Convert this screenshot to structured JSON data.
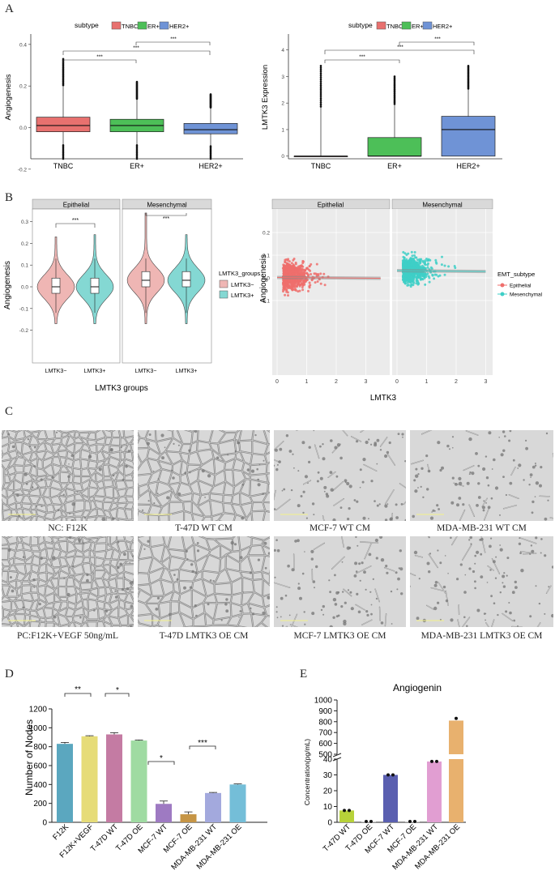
{
  "panels": {
    "A": "A",
    "B": "B",
    "C": "C",
    "D": "D",
    "E": "E"
  },
  "panelA": {
    "legend_title": "subtype",
    "legend_items": [
      "TNBC",
      "ER+",
      "HER2+"
    ],
    "colors": {
      "TNBC": "#e8716f",
      "ER+": "#4dbf58",
      "HER2+": "#6f93d6"
    },
    "sig": "***",
    "left": {
      "chart_data": {
        "type": "box",
        "ylabel": "Angiogenesis",
        "categories": [
          "TNBC",
          "ER+",
          "HER2+"
        ],
        "yticks": [
          "0.4",
          "0.2",
          "0.0",
          "-0.2"
        ],
        "ylim": [
          -0.15,
          0.45
        ],
        "boxes": [
          {
            "q1": -0.02,
            "median": 0.01,
            "q3": 0.05,
            "lo": -0.15,
            "hi": 0.33
          },
          {
            "q1": -0.02,
            "median": 0.01,
            "q3": 0.04,
            "lo": -0.15,
            "hi": 0.22
          },
          {
            "q1": -0.03,
            "median": -0.01,
            "q3": 0.02,
            "lo": -0.15,
            "hi": 0.16
          }
        ]
      }
    },
    "right": {
      "chart_data": {
        "type": "box",
        "ylabel": "LMTK3 Expression",
        "categories": [
          "TNBC",
          "ER+",
          "HER2+"
        ],
        "yticks": [
          "4",
          "3",
          "2",
          "1",
          "0"
        ],
        "ylim": [
          -0.1,
          4.6
        ],
        "boxes": [
          {
            "q1": 0,
            "median": 0,
            "q3": 0,
            "lo": 0,
            "hi": 3.4
          },
          {
            "q1": 0,
            "median": 0,
            "q3": 0.7,
            "lo": 0,
            "hi": 3.0
          },
          {
            "q1": 0,
            "median": 1.0,
            "q3": 1.5,
            "lo": 0,
            "hi": 3.4
          }
        ]
      }
    }
  },
  "panelB": {
    "violin": {
      "facets": [
        "Epithelial",
        "Mesenchymal"
      ],
      "ylabel": "Angiogenesis",
      "xlabel": "LMTK3 groups",
      "xticks": [
        "LMTK3−",
        "LMTK3+"
      ],
      "yticks": [
        "0.3",
        "0.2",
        "0.1",
        "0.0",
        "-0.1",
        "-0.2"
      ],
      "sig": "***",
      "legend_title": "LMTK3_groups",
      "legend_items": [
        "LMTK3−",
        "LMTK3+"
      ],
      "colors": {
        "neg": "#efb6b4",
        "pos": "#84d8d3"
      }
    },
    "scatter": {
      "facets": [
        "Epithelial",
        "Mesenchymal"
      ],
      "ylabel": "Angiogenesis",
      "xlabel": "LMTK3",
      "xticks": [
        "0",
        "1",
        "2",
        "3"
      ],
      "yticks": [
        "0.2",
        "0.1",
        "0.0",
        "-0.1"
      ],
      "legend_title": "EMT_subtype",
      "legend_items": [
        "Epithelial",
        "Mesenchymal"
      ],
      "colors": {
        "Epithelial": "#ef6f6c",
        "Mesenchymal": "#3ecfc7"
      }
    }
  },
  "panelC": {
    "captions": [
      "NC: F12K",
      "T-47D WT CM",
      "MCF-7 WT CM",
      "MDA-MB-231 WT CM",
      "PC:F12K+VEGF 50ng/mL",
      "T-47D LMTK3 OE CM",
      "MCF-7 LMTK3 OE CM",
      "MDA-MB-231 LMTK3 OE CM"
    ]
  },
  "panelD": {
    "chart_data": {
      "type": "bar",
      "ylabel": "Number of Nodes",
      "ylim": [
        0,
        1200
      ],
      "yticks": [
        "1200",
        "1000",
        "800",
        "600",
        "400",
        "200",
        "0"
      ],
      "categories": [
        "F12K",
        "F12K+VEGF",
        "T-47D WT",
        "T-47D OE",
        "MCF-7 WT",
        "MCF-7 OE",
        "MDA-MB-231 WT",
        "MDA-MB-231 OE"
      ],
      "values": [
        830,
        910,
        930,
        865,
        195,
        85,
        310,
        400
      ],
      "errors": [
        15,
        6,
        18,
        6,
        30,
        25,
        6,
        6
      ],
      "colors": [
        "#5ba7bf",
        "#e6dc78",
        "#c47ba3",
        "#9fdba2",
        "#9e7ac2",
        "#c69545",
        "#a3a9dd",
        "#74bed8"
      ],
      "sig": [
        "**",
        "*",
        "*",
        "***"
      ]
    }
  },
  "panelE": {
    "chart_data": {
      "type": "bar",
      "title": "Angiogenin",
      "ylabel": "Concentration(pg/mL)",
      "yticks_top": [
        "1000",
        "900",
        "800",
        "700",
        "600",
        "500"
      ],
      "yticks_bottom": [
        "40",
        "30",
        "20",
        "10",
        "0"
      ],
      "categories": [
        "T-47D WT",
        "T-47D OE",
        "MCF-7 WT",
        "MCF-7 OE",
        "MDA-MB-231 WT",
        "MDA-MB-231 OE"
      ],
      "values": [
        7.5,
        0.5,
        30,
        0.5,
        38.5,
        810
      ],
      "colors": [
        "#b7d239",
        "#c9c9c9",
        "#5a5fb0",
        "#c9c9c9",
        "#e19ed2",
        "#e8b16e"
      ]
    }
  }
}
